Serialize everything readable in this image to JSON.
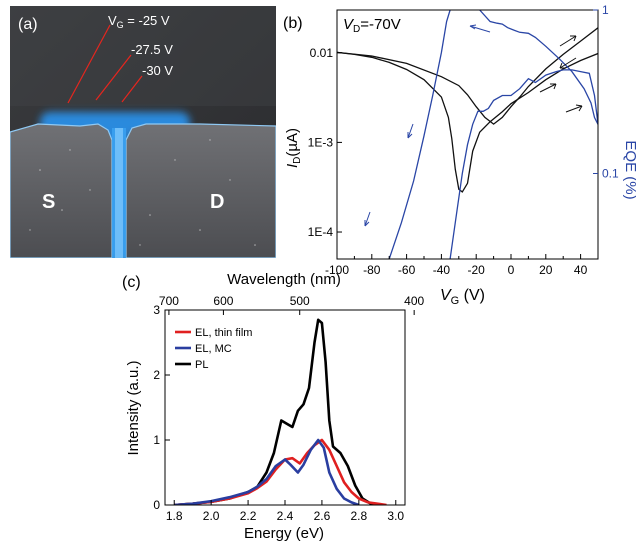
{
  "panel_a": {
    "label": "(a)",
    "vg_labels": [
      "V",
      "G",
      " = -25 V",
      "-27.5 V",
      "-30 V"
    ],
    "source": "S",
    "drain": "D"
  },
  "chart_data": [
    {
      "panel": "(b)",
      "type": "line",
      "annotation_vd": {
        "italic": "V",
        "sub": "D",
        "rest": "=-70V"
      },
      "xlabel": {
        "italic": "V",
        "sub": "G",
        "rest": " (V)"
      },
      "ylabel_left": {
        "italic": "I",
        "sub": "D",
        "rest": "(µA)"
      },
      "ylabel_right": "EQE (%)",
      "xlim": [
        -100,
        50
      ],
      "x_ticks": [
        -100,
        -80,
        -60,
        -40,
        -20,
        0,
        20,
        40
      ],
      "y_left_scale": "log",
      "y_left_lim": [
        5e-05,
        0.03
      ],
      "y_left_ticks": [
        {
          "value": 0.01,
          "label": "0.01"
        },
        {
          "value": 0.001,
          "label": "1E-3"
        },
        {
          "value": 0.0001,
          "label": "1E-4"
        }
      ],
      "y_right_scale": "log",
      "y_right_lim": [
        0.03,
        1
      ],
      "y_right_ticks": [
        {
          "value": 1,
          "label": "1"
        },
        {
          "value": 0.1,
          "label": "0.1"
        }
      ],
      "series": [
        {
          "axis": "left",
          "color": "#111111",
          "x": [
            -100,
            -90,
            -80,
            -70,
            -60,
            -50,
            -40,
            -36,
            -34,
            -32,
            -30,
            -28,
            -25,
            -22,
            -18,
            -12,
            -5,
            0,
            10,
            20,
            30,
            40,
            50
          ],
          "y": [
            0.0101,
            0.0096,
            0.0089,
            0.0078,
            0.0065,
            0.005,
            0.0032,
            0.0019,
            0.0011,
            0.0005,
            0.0003,
            0.00028,
            0.00035,
            0.0008,
            0.0013,
            0.0017,
            0.0022,
            0.0027,
            0.0036,
            0.005,
            0.0066,
            0.0082,
            0.0098
          ]
        },
        {
          "axis": "left",
          "color": "#111111",
          "x": [
            -100,
            -80,
            -60,
            -40,
            -30,
            -25,
            -20,
            -15,
            -10,
            -5,
            0,
            5,
            10,
            20,
            30,
            40,
            50
          ],
          "y": [
            0.0101,
            0.0092,
            0.0076,
            0.0054,
            0.0043,
            0.0034,
            0.0025,
            0.0019,
            0.0016,
            0.0019,
            0.0025,
            0.0032,
            0.0042,
            0.0066,
            0.0096,
            0.0135,
            0.019
          ]
        },
        {
          "axis": "right",
          "color": "#2a46a6",
          "x": [
            -70,
            -63,
            -56,
            -50,
            -45,
            -40,
            -37,
            -35
          ],
          "y": [
            0.03,
            0.05,
            0.09,
            0.17,
            0.3,
            0.55,
            0.85,
            1.0
          ]
        },
        {
          "axis": "right",
          "color": "#2a46a6",
          "x": [
            -18,
            -12,
            -8,
            -5,
            -2,
            2,
            5,
            10,
            14,
            20,
            28,
            35,
            42,
            46,
            48,
            50
          ],
          "y": [
            1.0,
            0.85,
            0.83,
            0.82,
            0.78,
            0.75,
            0.73,
            0.72,
            0.68,
            0.6,
            0.5,
            0.42,
            0.33,
            0.27,
            0.22,
            0.2
          ]
        },
        {
          "axis": "right",
          "color": "#2a46a6",
          "x": [
            -35,
            -31,
            -28,
            -25,
            -22,
            -19,
            -16,
            -13,
            -10,
            -5,
            0,
            5,
            10,
            14,
            20,
            26,
            30,
            35,
            40,
            45,
            48,
            50
          ],
          "y": [
            0.03,
            0.06,
            0.1,
            0.15,
            0.2,
            0.24,
            0.24,
            0.25,
            0.28,
            0.3,
            0.3,
            0.33,
            0.38,
            0.36,
            0.4,
            0.42,
            0.43,
            0.43,
            0.42,
            0.41,
            0.3,
            0.2
          ]
        }
      ]
    },
    {
      "panel": "(c)",
      "type": "line",
      "xlabel": "Energy (eV)",
      "ylabel": "Intensity (a.u.)",
      "top_axis_label": "Wavelength (nm)",
      "top_ticks": [
        {
          "value": 700,
          "label": "700"
        },
        {
          "value": 600,
          "label": "600"
        },
        {
          "value": 500,
          "label": "500"
        },
        {
          "value": 400,
          "label": "400"
        }
      ],
      "xlim": [
        1.75,
        3.05
      ],
      "x_ticks": [
        "1.8",
        "2.0",
        "2.2",
        "2.4",
        "2.6",
        "2.8",
        "3.0"
      ],
      "ylim": [
        0,
        3
      ],
      "y_ticks": [
        "0",
        "1",
        "2",
        "3"
      ],
      "legend": "upper-left",
      "series": [
        {
          "name": "EL, thin film",
          "color": "#e02020",
          "x": [
            1.8,
            1.9,
            2.0,
            2.1,
            2.2,
            2.25,
            2.3,
            2.35,
            2.4,
            2.44,
            2.48,
            2.52,
            2.56,
            2.6,
            2.64,
            2.68,
            2.72,
            2.76,
            2.8,
            2.85,
            2.9,
            2.95
          ],
          "y": [
            0.0,
            0.02,
            0.05,
            0.1,
            0.18,
            0.26,
            0.36,
            0.55,
            0.7,
            0.72,
            0.64,
            0.8,
            0.92,
            1.0,
            0.85,
            0.6,
            0.35,
            0.2,
            0.1,
            0.04,
            0.02,
            0.0
          ]
        },
        {
          "name": "EL, MC",
          "color": "#2a3ea0",
          "x": [
            1.8,
            1.9,
            2.0,
            2.1,
            2.2,
            2.25,
            2.3,
            2.35,
            2.4,
            2.43,
            2.47,
            2.5,
            2.54,
            2.58,
            2.61,
            2.64,
            2.68,
            2.72,
            2.76,
            2.8
          ],
          "y": [
            0.0,
            0.02,
            0.06,
            0.12,
            0.2,
            0.28,
            0.4,
            0.6,
            0.7,
            0.62,
            0.5,
            0.62,
            0.85,
            1.0,
            0.88,
            0.5,
            0.25,
            0.1,
            0.04,
            0.0
          ]
        },
        {
          "name": "PL",
          "color": "#000000",
          "x": [
            1.8,
            1.9,
            2.0,
            2.1,
            2.2,
            2.25,
            2.3,
            2.34,
            2.38,
            2.41,
            2.44,
            2.47,
            2.5,
            2.53,
            2.56,
            2.58,
            2.6,
            2.62,
            2.64,
            2.66,
            2.7,
            2.74,
            2.78,
            2.82,
            2.86,
            2.9
          ],
          "y": [
            0.0,
            0.02,
            0.05,
            0.1,
            0.2,
            0.28,
            0.5,
            0.8,
            1.3,
            1.25,
            1.2,
            1.45,
            1.55,
            1.8,
            2.5,
            2.85,
            2.8,
            2.2,
            1.3,
            0.9,
            0.8,
            0.6,
            0.3,
            0.1,
            0.03,
            0.0
          ]
        }
      ]
    }
  ]
}
